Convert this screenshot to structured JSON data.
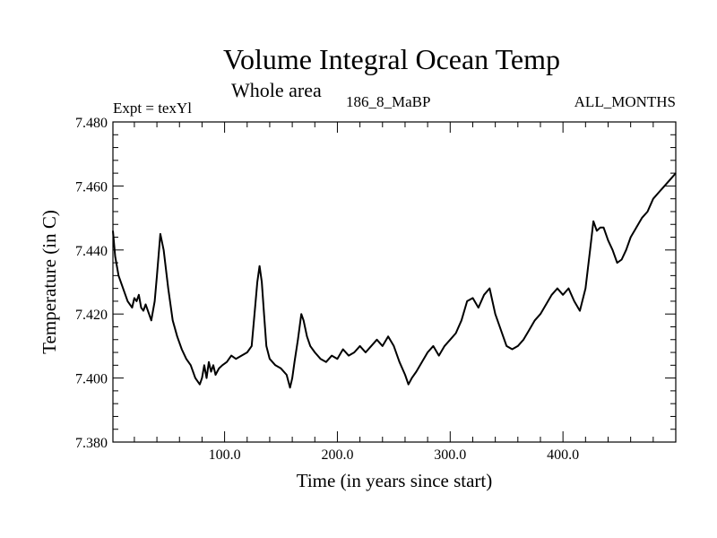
{
  "chart_data": {
    "type": "line",
    "title": "Volume Integral Ocean Temp",
    "subtitle": "Whole area",
    "left_label": "Expt = texYl",
    "center_label": "186_8_MaBP",
    "right_label": "ALL_MONTHS",
    "xlabel": "Time (in years since start)",
    "ylabel": "Temperature (in C)",
    "xlim": [
      1,
      500
    ],
    "ylim": [
      7.38,
      7.48
    ],
    "xticks": [
      {
        "value": 100,
        "label": "100.0"
      },
      {
        "value": 200,
        "label": "200.0"
      },
      {
        "value": 300,
        "label": "300.0"
      },
      {
        "value": 400,
        "label": "400.0"
      }
    ],
    "yticks": [
      {
        "value": 7.38,
        "label": "7.380"
      },
      {
        "value": 7.4,
        "label": "7.400"
      },
      {
        "value": 7.42,
        "label": "7.420"
      },
      {
        "value": 7.44,
        "label": "7.440"
      },
      {
        "value": 7.46,
        "label": "7.460"
      },
      {
        "value": 7.48,
        "label": "7.480"
      }
    ],
    "grid": false,
    "line_color": "#000000",
    "series": [
      {
        "x": [
          1,
          3,
          6,
          10,
          14,
          18,
          20,
          22,
          24,
          26,
          28,
          30,
          33,
          35,
          38,
          40,
          43,
          46,
          50,
          54,
          58,
          62,
          66,
          70,
          74,
          78,
          80,
          82,
          84,
          86,
          88,
          90,
          92,
          95,
          98,
          102,
          106,
          110,
          115,
          120,
          124,
          127,
          129,
          131,
          133,
          135,
          137,
          140,
          145,
          150,
          155,
          158,
          160,
          162,
          165,
          168,
          170,
          173,
          176,
          180,
          185,
          190,
          195,
          200,
          205,
          210,
          215,
          220,
          225,
          230,
          235,
          240,
          245,
          250,
          255,
          260,
          263,
          266,
          270,
          275,
          280,
          285,
          290,
          295,
          300,
          305,
          310,
          315,
          320,
          325,
          330,
          335,
          340,
          345,
          350,
          355,
          360,
          365,
          370,
          375,
          380,
          385,
          390,
          395,
          400,
          405,
          410,
          415,
          420,
          424,
          427,
          430,
          433,
          436,
          440,
          444,
          448,
          452,
          456,
          460,
          465,
          470,
          475,
          480,
          485,
          490,
          495,
          500
        ],
        "y": [
          7.446,
          7.438,
          7.432,
          7.428,
          7.424,
          7.422,
          7.425,
          7.424,
          7.426,
          7.422,
          7.421,
          7.423,
          7.42,
          7.418,
          7.424,
          7.432,
          7.445,
          7.44,
          7.428,
          7.418,
          7.413,
          7.409,
          7.406,
          7.404,
          7.4,
          7.398,
          7.4,
          7.404,
          7.4,
          7.405,
          7.402,
          7.404,
          7.401,
          7.403,
          7.404,
          7.405,
          7.407,
          7.406,
          7.407,
          7.408,
          7.41,
          7.422,
          7.43,
          7.435,
          7.43,
          7.42,
          7.41,
          7.406,
          7.404,
          7.403,
          7.401,
          7.397,
          7.4,
          7.405,
          7.412,
          7.42,
          7.418,
          7.413,
          7.41,
          7.408,
          7.406,
          7.405,
          7.407,
          7.406,
          7.409,
          7.407,
          7.408,
          7.41,
          7.408,
          7.41,
          7.412,
          7.41,
          7.413,
          7.41,
          7.405,
          7.401,
          7.398,
          7.4,
          7.402,
          7.405,
          7.408,
          7.41,
          7.407,
          7.41,
          7.412,
          7.414,
          7.418,
          7.424,
          7.425,
          7.422,
          7.426,
          7.428,
          7.42,
          7.415,
          7.41,
          7.409,
          7.41,
          7.412,
          7.415,
          7.418,
          7.42,
          7.423,
          7.426,
          7.428,
          7.426,
          7.428,
          7.424,
          7.421,
          7.428,
          7.44,
          7.449,
          7.446,
          7.447,
          7.447,
          7.443,
          7.44,
          7.436,
          7.437,
          7.44,
          7.444,
          7.447,
          7.45,
          7.452,
          7.456,
          7.458,
          7.46,
          7.462,
          7.464
        ]
      }
    ]
  }
}
